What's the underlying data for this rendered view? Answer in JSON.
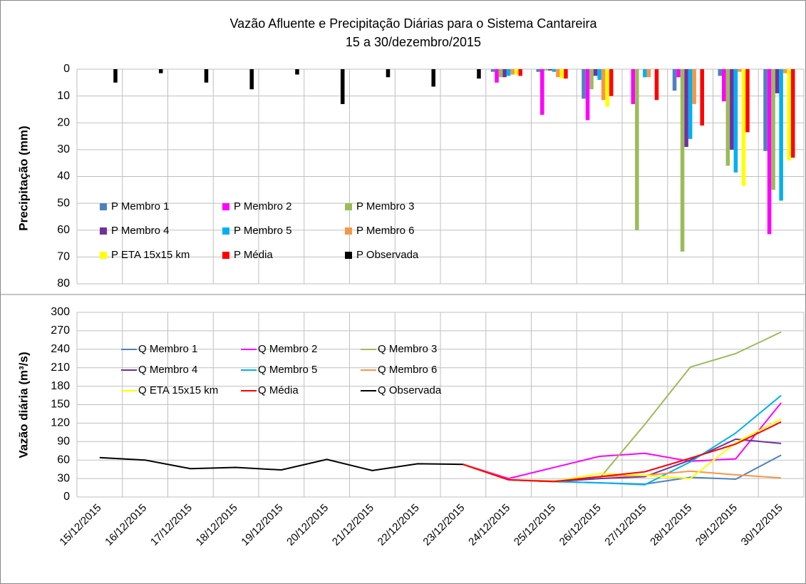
{
  "chart_data": [
    {
      "type": "bar",
      "title": "Vazão Afluente e Precipitação Diárias para o Sistema Cantareira",
      "subtitle": "15 a 30/dezembro/2015",
      "y_label": "Precipitação (mm)",
      "ylim": [
        0,
        80
      ],
      "yticks": [
        0,
        10,
        20,
        30,
        40,
        50,
        60,
        70,
        80
      ],
      "y_inverted": true,
      "grid": true,
      "series": [
        {
          "name": "P Membro 1",
          "color": "#4f81bd",
          "values": [
            null,
            null,
            null,
            null,
            null,
            null,
            null,
            null,
            null,
            1,
            1,
            11,
            0,
            8,
            2.5,
            30.5
          ]
        },
        {
          "name": "P Membro 2",
          "color": "#ff00ff",
          "values": [
            null,
            null,
            null,
            null,
            null,
            null,
            null,
            null,
            null,
            5,
            17,
            19,
            13,
            3,
            12,
            61.5
          ]
        },
        {
          "name": "P Membro 3",
          "color": "#9bbb59",
          "values": [
            null,
            null,
            null,
            null,
            null,
            null,
            null,
            null,
            null,
            3,
            0.5,
            7.5,
            60,
            68,
            36,
            45
          ]
        },
        {
          "name": "P Membro 4",
          "color": "#7030a0",
          "values": [
            null,
            null,
            null,
            null,
            null,
            null,
            null,
            null,
            null,
            3,
            0.5,
            2.5,
            0,
            29,
            30,
            9
          ]
        },
        {
          "name": "P Membro 5",
          "color": "#00b0f0",
          "values": [
            null,
            null,
            null,
            null,
            null,
            null,
            null,
            null,
            null,
            2.5,
            1,
            4,
            3,
            26,
            38.5,
            49
          ]
        },
        {
          "name": "P Membro 6",
          "color": "#f79646",
          "values": [
            null,
            null,
            null,
            null,
            null,
            null,
            null,
            null,
            null,
            2,
            3,
            11.5,
            3,
            13,
            1,
            1.5
          ]
        },
        {
          "name": "P ETA 15x15 km",
          "color": "#ffff00",
          "values": [
            null,
            null,
            null,
            null,
            null,
            null,
            null,
            null,
            null,
            2,
            3.5,
            14,
            0,
            0,
            43.5,
            34
          ]
        },
        {
          "name": "P Média",
          "color": "#ff0000",
          "values": [
            null,
            null,
            null,
            null,
            null,
            null,
            null,
            null,
            null,
            2.5,
            3.5,
            10,
            11.5,
            21,
            23.5,
            33
          ]
        },
        {
          "name": "P Observada",
          "color": "#000000",
          "values": [
            5,
            1.5,
            5,
            7.5,
            2,
            13,
            3,
            6.5,
            3.5,
            null,
            null,
            null,
            null,
            null,
            null,
            null
          ]
        }
      ]
    },
    {
      "type": "line",
      "y_label": "Vazão diária (m³/s)",
      "categories": [
        "15/12/2015",
        "16/12/2015",
        "17/12/2015",
        "18/12/2015",
        "19/12/2015",
        "20/12/2015",
        "21/12/2015",
        "22/12/2015",
        "23/12/2015",
        "24/12/2015",
        "25/12/2015",
        "26/12/2015",
        "27/12/2015",
        "28/12/2015",
        "29/12/2015",
        "30/12/2015"
      ],
      "ylim": [
        0,
        300
      ],
      "yticks": [
        0,
        30,
        60,
        90,
        120,
        150,
        180,
        210,
        240,
        270,
        300
      ],
      "grid": true,
      "series": [
        {
          "name": "Q Membro 1",
          "color": "#4f81bd",
          "values": [
            null,
            null,
            null,
            null,
            null,
            null,
            null,
            null,
            53,
            28,
            25,
            23,
            21,
            32,
            29,
            68
          ]
        },
        {
          "name": "Q Membro 2",
          "color": "#ff00ff",
          "values": [
            null,
            null,
            null,
            null,
            null,
            null,
            null,
            null,
            53,
            30,
            48,
            66,
            71,
            58,
            62,
            153
          ]
        },
        {
          "name": "Q Membro 3",
          "color": "#9bbb59",
          "values": [
            null,
            null,
            null,
            null,
            null,
            null,
            null,
            null,
            53,
            28,
            25,
            30,
            118,
            211,
            233,
            268
          ]
        },
        {
          "name": "Q Membro 4",
          "color": "#7030a0",
          "values": [
            null,
            null,
            null,
            null,
            null,
            null,
            null,
            null,
            53,
            28,
            25,
            30,
            33,
            60,
            94,
            87
          ]
        },
        {
          "name": "Q Membro 5",
          "color": "#00b0f0",
          "values": [
            null,
            null,
            null,
            null,
            null,
            null,
            null,
            null,
            53,
            28,
            25,
            23,
            20,
            57,
            104,
            165
          ]
        },
        {
          "name": "Q Membro 6",
          "color": "#f79646",
          "values": [
            null,
            null,
            null,
            null,
            null,
            null,
            null,
            null,
            53,
            28,
            26,
            33,
            35,
            42,
            36,
            31
          ]
        },
        {
          "name": "Q ETA 15x15 km",
          "color": "#ffff00",
          "values": [
            null,
            null,
            null,
            null,
            null,
            null,
            null,
            null,
            53,
            28,
            25,
            38,
            35,
            30,
            88,
            127
          ]
        },
        {
          "name": "Q Média",
          "color": "#ff0000",
          "values": [
            null,
            null,
            null,
            null,
            null,
            null,
            null,
            null,
            53,
            28,
            25,
            33,
            41,
            63,
            86,
            122
          ]
        },
        {
          "name": "Q Observada",
          "color": "#000000",
          "values": [
            64,
            60,
            46,
            48,
            44,
            61,
            43,
            54,
            53,
            null,
            null,
            null,
            null,
            null,
            null,
            null
          ]
        }
      ]
    }
  ]
}
